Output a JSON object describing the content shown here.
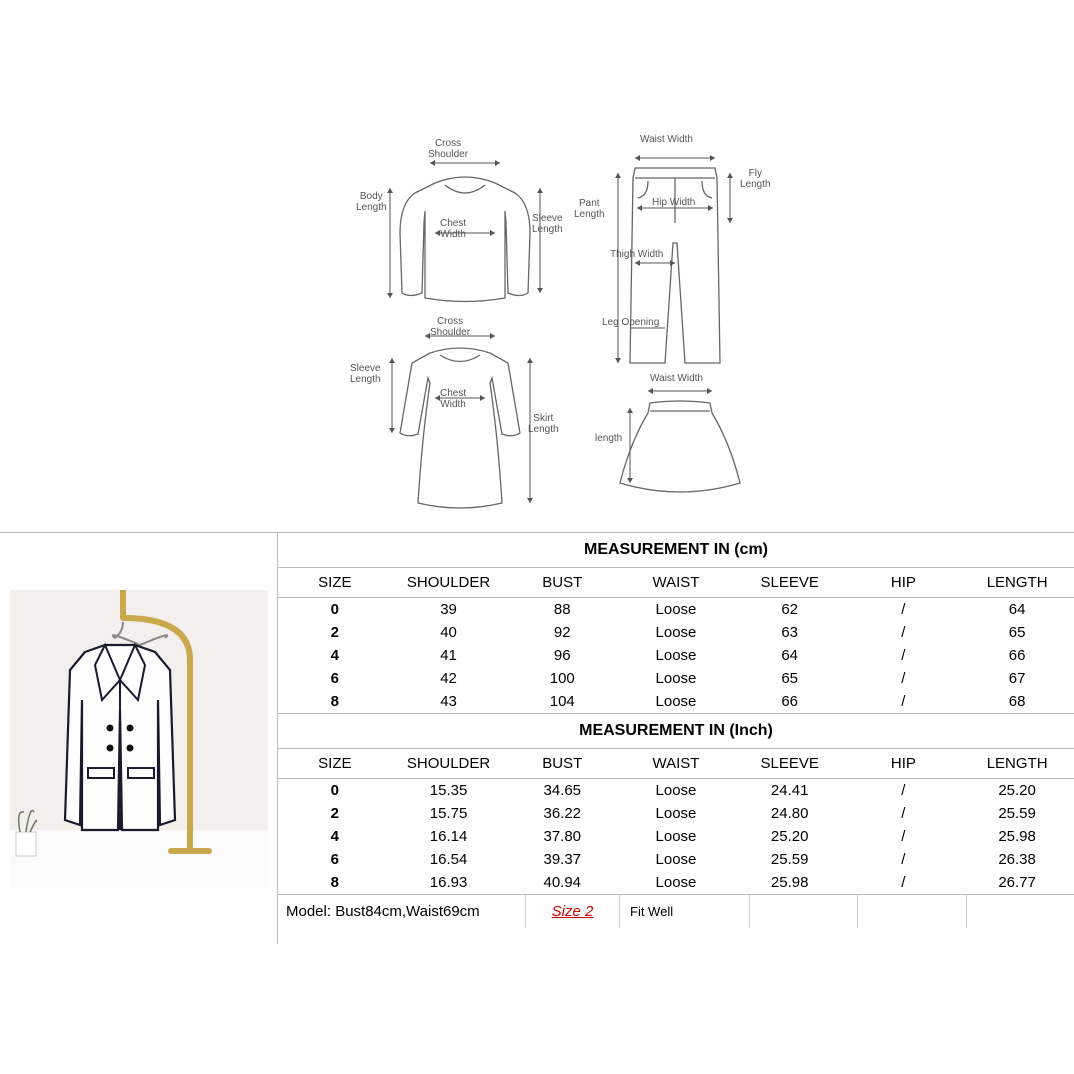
{
  "diagram_labels": {
    "top_cross_shoulder": "Cross\nShoulder",
    "top_body_length": "Body\nLength",
    "top_chest_width": "Chest\nWidth",
    "top_sleeve_length": "Sleeve\nLength",
    "pant_waist_width": "Waist Width",
    "pant_fly_length": "Fly\nLength",
    "pant_pant_length": "Pant\nLength",
    "pant_hip_width": "Hip Width",
    "pant_thigh_width": "Thigh Width",
    "pant_leg_opening": "Leg Opening",
    "dress_cross_shoulder": "Cross\nShoulder",
    "dress_sleeve_length": "Sleeve\nLength",
    "dress_chest_width": "Chest\nWidth",
    "dress_skirt_length": "Skirt\nLength",
    "skirt_waist_width": "Waist Width",
    "skirt_length": "length"
  },
  "table_cm": {
    "title": "MEASUREMENT IN (cm)",
    "headers": [
      "SIZE",
      "SHOULDER",
      "BUST",
      "WAIST",
      "SLEEVE",
      "HIP",
      "LENGTH"
    ],
    "rows": [
      [
        "0",
        "39",
        "88",
        "Loose",
        "62",
        "/",
        "64"
      ],
      [
        "2",
        "40",
        "92",
        "Loose",
        "63",
        "/",
        "65"
      ],
      [
        "4",
        "41",
        "96",
        "Loose",
        "64",
        "/",
        "66"
      ],
      [
        "6",
        "42",
        "100",
        "Loose",
        "65",
        "/",
        "67"
      ],
      [
        "8",
        "43",
        "104",
        "Loose",
        "66",
        "/",
        "68"
      ]
    ]
  },
  "table_inch": {
    "title": "MEASUREMENT IN (Inch)",
    "headers": [
      "SIZE",
      "SHOULDER",
      "BUST",
      "WAIST",
      "SLEEVE",
      "HIP",
      "LENGTH"
    ],
    "rows": [
      [
        "0",
        "15.35",
        "34.65",
        "Loose",
        "24.41",
        "/",
        "25.20"
      ],
      [
        "2",
        "15.75",
        "36.22",
        "Loose",
        "24.80",
        "/",
        "25.59"
      ],
      [
        "4",
        "16.14",
        "37.80",
        "Loose",
        "25.20",
        "/",
        "25.98"
      ],
      [
        "6",
        "16.54",
        "39.37",
        "Loose",
        "25.59",
        "/",
        "26.38"
      ],
      [
        "8",
        "16.93",
        "40.94",
        "Loose",
        "25.98",
        "/",
        "26.77"
      ]
    ]
  },
  "footer": {
    "model": "Model: Bust84cm,Waist69cm",
    "size": "Size 2",
    "fit": "Fit Well"
  },
  "colors": {
    "border": "#bbbbbb",
    "text": "#000000",
    "accent_red": "#d40000",
    "diagram_stroke": "#666666",
    "product_bg": "#f2efed",
    "rack_gold": "#caa84c",
    "jacket_outline": "#1a1a2e"
  }
}
